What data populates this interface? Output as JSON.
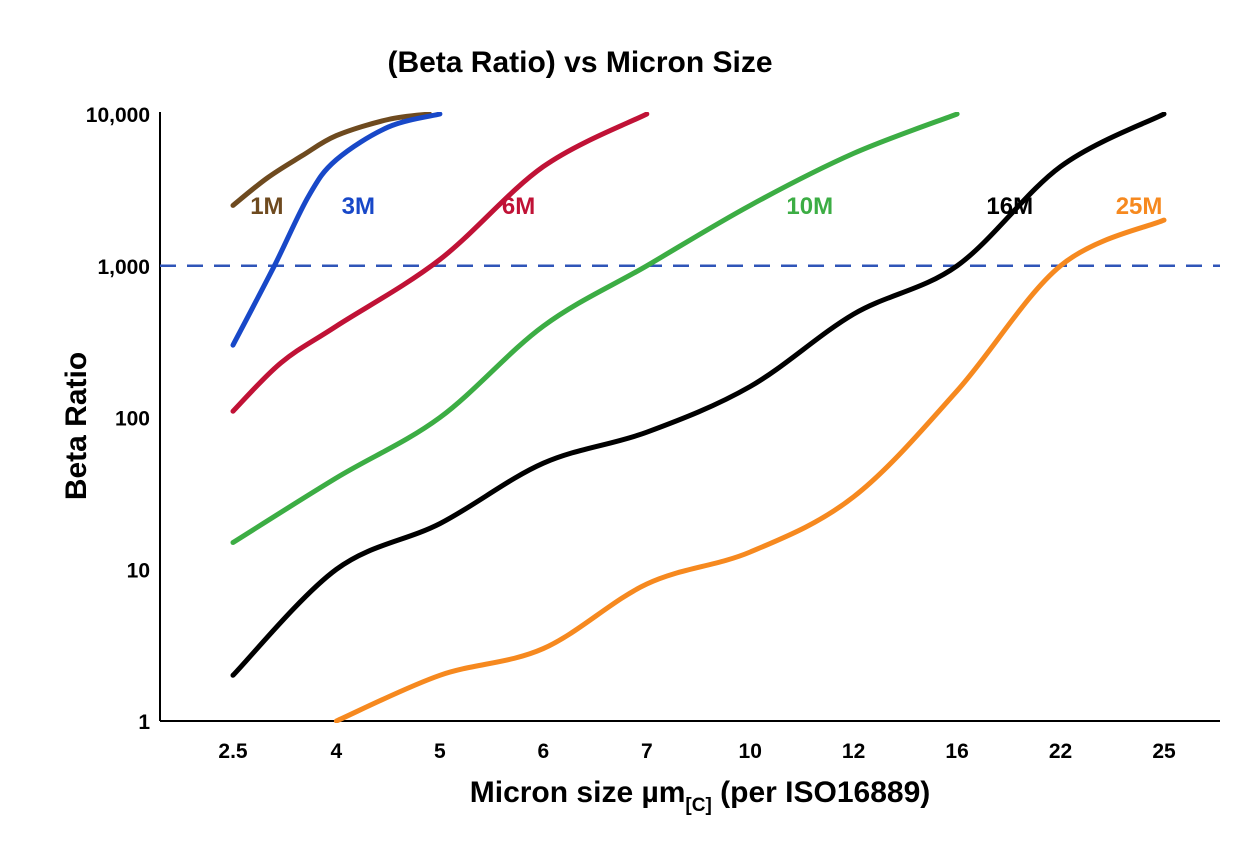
{
  "title": "(Beta Ratio) vs Micron Size",
  "chart_data": {
    "type": "line",
    "title": "(Beta Ratio) vs Micron Size",
    "ylabel": "Beta Ratio",
    "xlabel_main": "Micron size µm",
    "xlabel_sub": "[C]",
    "xlabel_tail": " (per ISO16889)",
    "x_categories": [
      2.5,
      4,
      5,
      6,
      7,
      10,
      12,
      16,
      22,
      25
    ],
    "x_tick_labels": [
      "2.5",
      "4",
      "5",
      "6",
      "7",
      "10",
      "12",
      "16",
      "22",
      "25"
    ],
    "y_scale": "log",
    "ylim": [
      1,
      10000
    ],
    "y_ticks": [
      1,
      10,
      100,
      1000,
      10000
    ],
    "y_tick_labels": [
      "1",
      "10",
      "100",
      "1,000",
      "10,000"
    ],
    "grid": false,
    "legend_position": "inline-labels",
    "reference_line": {
      "y": 1000,
      "style": "dashed",
      "color": "#2f55b8"
    },
    "series": [
      {
        "name": "1M",
        "color": "#6e4a1f",
        "label_at": {
          "x": 2.75,
          "y": 2200
        },
        "points": [
          [
            2.5,
            2500
          ],
          [
            3.0,
            3800
          ],
          [
            3.5,
            5300
          ],
          [
            4.0,
            7200
          ],
          [
            4.5,
            9200
          ],
          [
            4.9,
            10000
          ]
        ]
      },
      {
        "name": "3M",
        "color": "#1848c8",
        "label_at": {
          "x": 4.05,
          "y": 2200
        },
        "points": [
          [
            2.5,
            300
          ],
          [
            3.1,
            1000
          ],
          [
            3.6,
            2900
          ],
          [
            4.0,
            5000
          ],
          [
            4.5,
            8200
          ],
          [
            5.0,
            10000
          ]
        ]
      },
      {
        "name": "6M",
        "color": "#c01236",
        "label_at": {
          "x": 5.6,
          "y": 2200
        },
        "points": [
          [
            2.5,
            110
          ],
          [
            3.2,
            230
          ],
          [
            4.0,
            400
          ],
          [
            5.0,
            1100
          ],
          [
            6.0,
            4500
          ],
          [
            7.0,
            10000
          ]
        ]
      },
      {
        "name": "10M",
        "color": "#3cad44",
        "label_at": {
          "x": 10.7,
          "y": 2200
        },
        "points": [
          [
            2.5,
            15
          ],
          [
            4,
            40
          ],
          [
            5,
            100
          ],
          [
            6,
            400
          ],
          [
            7,
            1000
          ],
          [
            10,
            2500
          ],
          [
            12,
            5500
          ],
          [
            16,
            10000
          ]
        ]
      },
      {
        "name": "16M",
        "color": "#000000",
        "label_at": {
          "x": 17.7,
          "y": 2200
        },
        "points": [
          [
            2.5,
            2
          ],
          [
            4,
            10
          ],
          [
            5,
            20
          ],
          [
            6,
            50
          ],
          [
            7,
            80
          ],
          [
            10,
            160
          ],
          [
            12,
            480
          ],
          [
            16,
            1000
          ],
          [
            22,
            4500
          ],
          [
            25,
            10000
          ]
        ]
      },
      {
        "name": "25M",
        "color": "#f6891f",
        "label_at": {
          "x": 23.6,
          "y": 2200
        },
        "points": [
          [
            4,
            1
          ],
          [
            5,
            2
          ],
          [
            6,
            3
          ],
          [
            7,
            8
          ],
          [
            10,
            13
          ],
          [
            12,
            30
          ],
          [
            16,
            150
          ],
          [
            22,
            1000
          ],
          [
            25,
            2000
          ]
        ]
      }
    ]
  }
}
